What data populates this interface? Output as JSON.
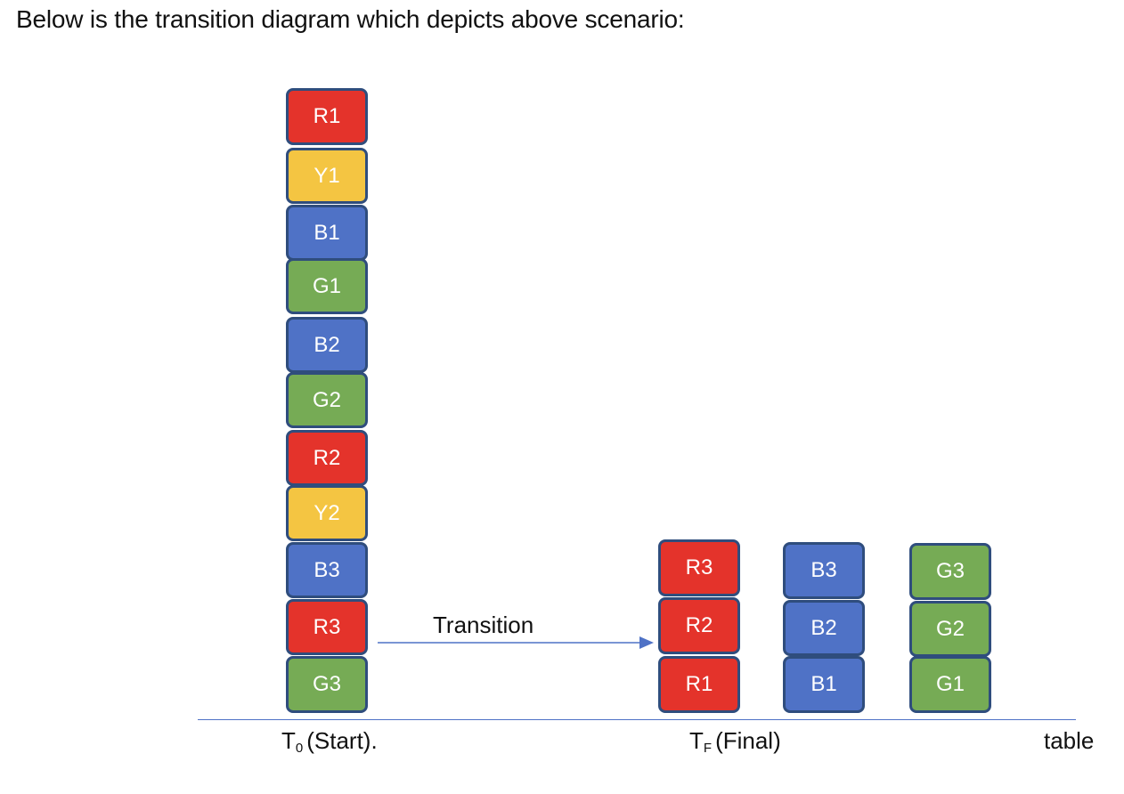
{
  "heading": "Below is the transition diagram which depicts above scenario:",
  "colors": {
    "red": "#e4332b",
    "yellow": "#f4c542",
    "blue": "#4f72c6",
    "green": "#76ab55",
    "border": "#2f4d7d"
  },
  "start_stack": [
    "R1",
    "Y1",
    "B1",
    "G1",
    "B2",
    "G2",
    "R2",
    "Y2",
    "B3",
    "R3",
    "G3"
  ],
  "final_stacks": {
    "red": [
      "R3",
      "R2",
      "R1"
    ],
    "blue": [
      "B3",
      "B2",
      "B1"
    ],
    "green": [
      "G3",
      "G2",
      "G1"
    ]
  },
  "transition_label": "Transition",
  "labels": {
    "start_T": "T",
    "start_sub": "0",
    "start_text": "(Start).",
    "final_T": "T",
    "final_sub": "F",
    "final_text": "(Final)",
    "table": "table"
  }
}
